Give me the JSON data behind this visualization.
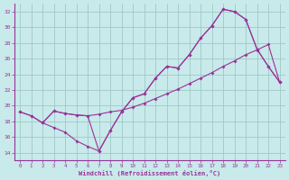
{
  "xlabel": "Windchill (Refroidissement éolien,°C)",
  "bg_color": "#c8eaea",
  "line_color": "#993399",
  "grid_color": "#a0c8c8",
  "xlim": [
    -0.5,
    23.5
  ],
  "ylim": [
    13,
    33
  ],
  "xticks": [
    0,
    1,
    2,
    3,
    4,
    5,
    6,
    7,
    8,
    9,
    10,
    11,
    12,
    13,
    14,
    15,
    16,
    17,
    18,
    19,
    20,
    21,
    22,
    23
  ],
  "yticks": [
    14,
    16,
    18,
    20,
    22,
    24,
    26,
    28,
    30,
    32
  ],
  "line1_x": [
    0,
    1,
    2,
    3,
    4,
    5,
    6,
    7,
    8,
    9,
    10,
    11,
    12,
    13,
    14,
    15,
    16,
    17,
    18,
    19,
    20,
    21,
    22,
    23
  ],
  "line1_y": [
    19.2,
    18.7,
    17.8,
    19.3,
    19.0,
    18.8,
    18.7,
    18.9,
    19.2,
    19.4,
    19.8,
    20.3,
    20.9,
    21.5,
    22.1,
    22.8,
    23.5,
    24.2,
    25.0,
    25.7,
    26.5,
    27.1,
    27.8,
    23.0
  ],
  "line2_x": [
    0,
    1,
    2,
    3,
    4,
    5,
    6,
    7,
    8,
    9,
    10,
    11,
    12,
    13,
    14,
    15,
    16,
    17,
    18,
    19,
    20,
    21,
    22,
    23
  ],
  "line2_y": [
    19.2,
    18.7,
    17.8,
    17.2,
    16.6,
    15.5,
    14.8,
    14.2,
    16.8,
    19.2,
    21.0,
    21.5,
    23.5,
    25.0,
    24.8,
    26.5,
    28.6,
    30.2,
    32.3,
    32.0,
    31.0,
    27.2,
    25.0,
    23.0
  ],
  "line3_x": [
    2,
    3,
    4,
    5,
    6,
    7,
    8,
    9,
    10,
    11,
    12,
    13,
    14,
    15,
    16,
    17,
    18,
    19,
    20,
    21,
    22,
    23
  ],
  "line3_y": [
    17.8,
    19.3,
    19.0,
    18.8,
    18.7,
    14.2,
    16.8,
    19.2,
    21.0,
    21.5,
    23.5,
    25.0,
    24.8,
    26.5,
    28.6,
    30.2,
    32.3,
    32.0,
    31.0,
    27.2,
    25.0,
    23.0
  ]
}
